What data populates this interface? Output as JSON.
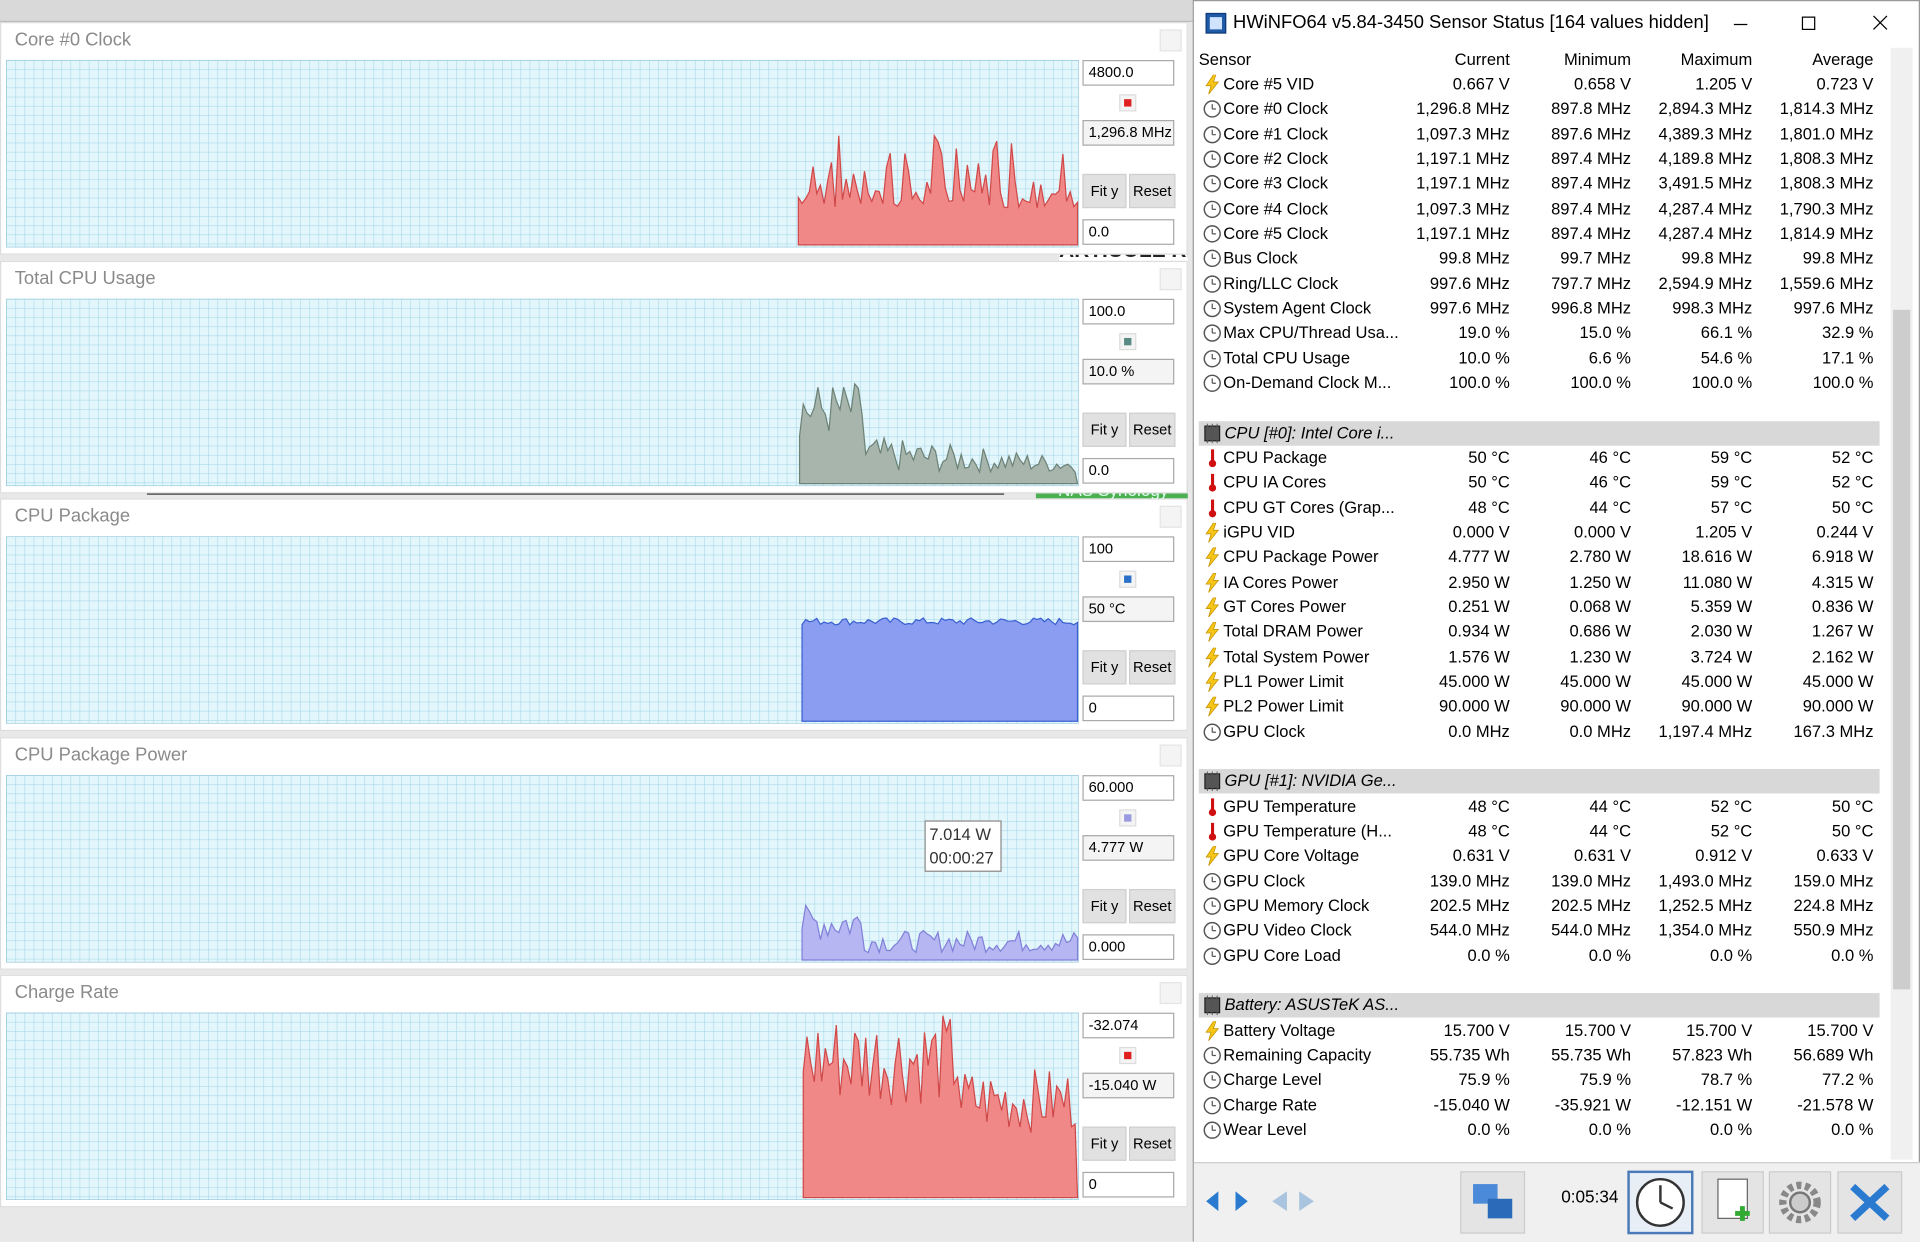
{
  "background": {
    "texts": [
      "ARTICOLE REC",
      "NAS Synology"
    ]
  },
  "buttons": {
    "fit": "Fit y",
    "reset": "Reset"
  },
  "graphs": [
    {
      "title": "Core #0 Clock",
      "max": "4800.0",
      "current": "1,296.8 MHz",
      "min": "0.0",
      "color": "#e02020"
    },
    {
      "title": "Total CPU Usage",
      "max": "100.0",
      "current": "10.0 %",
      "min": "0.0",
      "color": "#5a8a84"
    },
    {
      "title": "CPU Package",
      "max": "100",
      "current": "50 °C",
      "min": "0",
      "color": "#2a70c8"
    },
    {
      "title": "CPU Package Power",
      "max": "60.000",
      "current": "4.777 W",
      "min": "0.000",
      "color": "#9a9ae0",
      "tooltip": [
        "7.014 W",
        "00:00:27"
      ]
    },
    {
      "title": "Charge Rate",
      "max": "-32.074",
      "current": "-15.040 W",
      "min": "0",
      "color": "#e02020"
    }
  ],
  "sensor": {
    "title": "HWiNFO64 v5.84-3450 Sensor Status [164 values hidden]",
    "columns": [
      "Sensor",
      "Current",
      "Minimum",
      "Maximum",
      "Average"
    ],
    "time": "0:05:34",
    "sections": [
      {
        "rows": [
          {
            "icon": "volt",
            "cells": [
              "Core #5 VID",
              "0.667 V",
              "0.658 V",
              "1.205 V",
              "0.723 V"
            ]
          },
          {
            "icon": "clock",
            "cells": [
              "Core #0 Clock",
              "1,296.8 MHz",
              "897.8 MHz",
              "2,894.3 MHz",
              "1,814.3 MHz"
            ]
          },
          {
            "icon": "clock",
            "cells": [
              "Core #1 Clock",
              "1,097.3 MHz",
              "897.6 MHz",
              "4,389.3 MHz",
              "1,801.0 MHz"
            ]
          },
          {
            "icon": "clock",
            "cells": [
              "Core #2 Clock",
              "1,197.1 MHz",
              "897.4 MHz",
              "4,189.8 MHz",
              "1,808.3 MHz"
            ]
          },
          {
            "icon": "clock",
            "cells": [
              "Core #3 Clock",
              "1,197.1 MHz",
              "897.4 MHz",
              "3,491.5 MHz",
              "1,808.3 MHz"
            ]
          },
          {
            "icon": "clock",
            "cells": [
              "Core #4 Clock",
              "1,097.3 MHz",
              "897.4 MHz",
              "4,287.4 MHz",
              "1,790.3 MHz"
            ]
          },
          {
            "icon": "clock",
            "cells": [
              "Core #5 Clock",
              "1,197.1 MHz",
              "897.4 MHz",
              "4,287.4 MHz",
              "1,814.9 MHz"
            ]
          },
          {
            "icon": "clock",
            "cells": [
              "Bus Clock",
              "99.8 MHz",
              "99.7 MHz",
              "99.8 MHz",
              "99.8 MHz"
            ]
          },
          {
            "icon": "clock",
            "cells": [
              "Ring/LLC Clock",
              "997.6 MHz",
              "797.7 MHz",
              "2,594.9 MHz",
              "1,559.6 MHz"
            ]
          },
          {
            "icon": "clock",
            "cells": [
              "System Agent Clock",
              "997.6 MHz",
              "996.8 MHz",
              "998.3 MHz",
              "997.6 MHz"
            ]
          },
          {
            "icon": "clock",
            "cells": [
              "Max CPU/Thread Usa...",
              "19.0 %",
              "15.0 %",
              "66.1 %",
              "32.9 %"
            ]
          },
          {
            "icon": "clock",
            "cells": [
              "Total CPU Usage",
              "10.0 %",
              "6.6 %",
              "54.6 %",
              "17.1 %"
            ]
          },
          {
            "icon": "clock",
            "cells": [
              "On-Demand Clock M...",
              "100.0 %",
              "100.0 %",
              "100.0 %",
              "100.0 %"
            ]
          }
        ]
      },
      {
        "group": "CPU [#0]: Intel Core i...",
        "rows": [
          {
            "icon": "temp",
            "cells": [
              "CPU Package",
              "50 °C",
              "46 °C",
              "59 °C",
              "52 °C"
            ]
          },
          {
            "icon": "temp",
            "cells": [
              "CPU IA Cores",
              "50 °C",
              "46 °C",
              "59 °C",
              "52 °C"
            ]
          },
          {
            "icon": "temp",
            "cells": [
              "CPU GT Cores (Grap...",
              "48 °C",
              "44 °C",
              "57 °C",
              "50 °C"
            ]
          },
          {
            "icon": "volt",
            "cells": [
              "iGPU VID",
              "0.000 V",
              "0.000 V",
              "1.205 V",
              "0.244 V"
            ]
          },
          {
            "icon": "volt",
            "cells": [
              "CPU Package Power",
              "4.777 W",
              "2.780 W",
              "18.616 W",
              "6.918 W"
            ]
          },
          {
            "icon": "volt",
            "cells": [
              "IA Cores Power",
              "2.950 W",
              "1.250 W",
              "11.080 W",
              "4.315 W"
            ]
          },
          {
            "icon": "volt",
            "cells": [
              "GT Cores Power",
              "0.251 W",
              "0.068 W",
              "5.359 W",
              "0.836 W"
            ]
          },
          {
            "icon": "volt",
            "cells": [
              "Total DRAM Power",
              "0.934 W",
              "0.686 W",
              "2.030 W",
              "1.267 W"
            ]
          },
          {
            "icon": "volt",
            "cells": [
              "Total System Power",
              "1.576 W",
              "1.230 W",
              "3.724 W",
              "2.162 W"
            ]
          },
          {
            "icon": "volt",
            "cells": [
              "PL1 Power Limit",
              "45.000 W",
              "45.000 W",
              "45.000 W",
              "45.000 W"
            ]
          },
          {
            "icon": "volt",
            "cells": [
              "PL2 Power Limit",
              "90.000 W",
              "90.000 W",
              "90.000 W",
              "90.000 W"
            ]
          },
          {
            "icon": "clock",
            "cells": [
              "GPU Clock",
              "0.0 MHz",
              "0.0 MHz",
              "1,197.4 MHz",
              "167.3 MHz"
            ]
          }
        ]
      },
      {
        "group": "GPU [#1]: NVIDIA Ge...",
        "rows": [
          {
            "icon": "temp",
            "cells": [
              "GPU Temperature",
              "48 °C",
              "44 °C",
              "52 °C",
              "50 °C"
            ]
          },
          {
            "icon": "temp",
            "cells": [
              "GPU Temperature (H...",
              "48 °C",
              "44 °C",
              "52 °C",
              "50 °C"
            ]
          },
          {
            "icon": "volt",
            "cells": [
              "GPU Core Voltage",
              "0.631 V",
              "0.631 V",
              "0.912 V",
              "0.633 V"
            ]
          },
          {
            "icon": "clock",
            "cells": [
              "GPU Clock",
              "139.0 MHz",
              "139.0 MHz",
              "1,493.0 MHz",
              "159.0 MHz"
            ]
          },
          {
            "icon": "clock",
            "cells": [
              "GPU Memory Clock",
              "202.5 MHz",
              "202.5 MHz",
              "1,252.5 MHz",
              "224.8 MHz"
            ]
          },
          {
            "icon": "clock",
            "cells": [
              "GPU Video Clock",
              "544.0 MHz",
              "544.0 MHz",
              "1,354.0 MHz",
              "550.9 MHz"
            ]
          },
          {
            "icon": "clock",
            "cells": [
              "GPU Core Load",
              "0.0 %",
              "0.0 %",
              "0.0 %",
              "0.0 %"
            ]
          }
        ]
      },
      {
        "group": "Battery: ASUSTeK AS...",
        "rows": [
          {
            "icon": "volt",
            "cells": [
              "Battery Voltage",
              "15.700 V",
              "15.700 V",
              "15.700 V",
              "15.700 V"
            ]
          },
          {
            "icon": "clock",
            "cells": [
              "Remaining Capacity",
              "55.735 Wh",
              "55.735 Wh",
              "57.823 Wh",
              "56.689 Wh"
            ]
          },
          {
            "icon": "clock",
            "cells": [
              "Charge Level",
              "75.9 %",
              "75.9 %",
              "78.7 %",
              "77.2 %"
            ]
          },
          {
            "icon": "clock",
            "cells": [
              "Charge Rate",
              "-15.040 W",
              "-35.921 W",
              "-12.151 W",
              "-21.578 W"
            ]
          },
          {
            "icon": "clock",
            "cells": [
              "Wear Level",
              "0.0 %",
              "0.0 %",
              "0.0 %",
              "0.0 %"
            ]
          }
        ]
      }
    ]
  }
}
